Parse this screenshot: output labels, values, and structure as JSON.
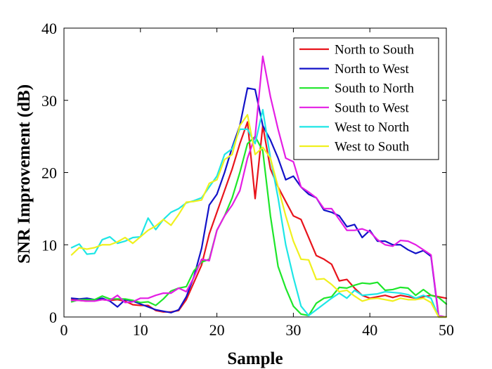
{
  "chart_data": {
    "type": "line",
    "title": "",
    "xlabel": "Sample",
    "ylabel": "SNR Improvement (dB)",
    "xlim": [
      0,
      50
    ],
    "ylim": [
      0,
      40
    ],
    "xticks": [
      0,
      10,
      20,
      30,
      40,
      50
    ],
    "yticks": [
      0,
      10,
      20,
      30,
      40
    ],
    "grid": false,
    "legend_position": "top-right",
    "x": [
      1,
      2,
      3,
      4,
      5,
      6,
      7,
      8,
      9,
      10,
      11,
      12,
      13,
      14,
      15,
      16,
      17,
      18,
      19,
      20,
      21,
      22,
      23,
      24,
      25,
      26,
      27,
      28,
      29,
      30,
      31,
      32,
      33,
      34,
      35,
      36,
      37,
      38,
      39,
      40,
      41,
      42,
      43,
      44,
      45,
      46,
      47,
      48,
      49,
      50
    ],
    "series": [
      {
        "name": "North to South",
        "color": "#e8141c",
        "values": [
          2.4,
          2.3,
          2.2,
          2.3,
          2.4,
          2.3,
          2.4,
          2.2,
          1.7,
          1.6,
          1.6,
          0.9,
          0.7,
          0.7,
          0.9,
          2.4,
          4.8,
          7.2,
          11.5,
          14.5,
          17.5,
          20.5,
          24.0,
          27.0,
          16.4,
          26.5,
          20.5,
          18.0,
          16.0,
          14.0,
          13.5,
          11.0,
          8.5,
          8.0,
          7.3,
          5.0,
          5.2,
          4.0,
          3.0,
          2.6,
          2.8,
          3.0,
          2.7,
          3.0,
          2.8,
          2.6,
          2.8,
          3.0,
          2.8,
          2.6
        ]
      },
      {
        "name": "North to West",
        "color": "#1212c8",
        "values": [
          2.6,
          2.5,
          2.6,
          2.4,
          2.6,
          2.2,
          1.4,
          2.4,
          2.2,
          1.8,
          1.4,
          1.0,
          0.8,
          0.6,
          1.0,
          2.8,
          5.6,
          9.5,
          15.5,
          17.0,
          20.0,
          23.5,
          26.5,
          31.7,
          31.5,
          26.5,
          24.5,
          22.0,
          19.0,
          19.5,
          18.0,
          17.0,
          16.5,
          14.8,
          14.5,
          14.0,
          12.5,
          12.8,
          11.0,
          12.0,
          10.5,
          10.5,
          10.0,
          10.0,
          9.3,
          8.8,
          9.2,
          8.4,
          0.0,
          0.0
        ]
      },
      {
        "name": "South to North",
        "color": "#1ee62a",
        "values": [
          2.1,
          2.4,
          2.4,
          2.4,
          2.9,
          2.5,
          2.5,
          2.5,
          2.3,
          2.0,
          2.1,
          1.6,
          2.5,
          3.6,
          4.0,
          4.2,
          6.4,
          7.6,
          8.0,
          12.0,
          14.0,
          16.5,
          20.0,
          24.0,
          25.0,
          23.0,
          14.0,
          7.0,
          4.0,
          1.5,
          0.4,
          0.2,
          1.9,
          2.6,
          2.8,
          4.1,
          4.0,
          4.4,
          4.7,
          4.6,
          4.8,
          3.7,
          3.8,
          4.1,
          4.0,
          3.0,
          3.8,
          3.0,
          2.7,
          1.8
        ]
      },
      {
        "name": "South to West",
        "color": "#e41ee4",
        "values": [
          2.3,
          2.3,
          2.2,
          2.2,
          2.4,
          2.3,
          3.0,
          2.0,
          2.1,
          2.6,
          2.6,
          3.0,
          3.3,
          3.3,
          4.0,
          3.5,
          5.5,
          8.0,
          7.8,
          12.0,
          14.0,
          15.5,
          17.5,
          22.0,
          25.0,
          36.1,
          30.5,
          26.0,
          22.0,
          21.5,
          18.0,
          17.3,
          16.5,
          15.0,
          15.0,
          13.5,
          12.0,
          12.0,
          12.2,
          11.8,
          10.7,
          10.0,
          9.8,
          10.6,
          10.5,
          10.0,
          9.3,
          8.6,
          0.2,
          0.0
        ]
      },
      {
        "name": "West to North",
        "color": "#1ee6e6",
        "values": [
          9.6,
          10.1,
          8.7,
          8.8,
          10.7,
          11.1,
          10.2,
          10.5,
          11.0,
          11.1,
          13.7,
          12.1,
          13.5,
          14.5,
          15.0,
          15.8,
          16.1,
          16.5,
          18.0,
          19.5,
          22.5,
          23.3,
          26.0,
          26.0,
          24.0,
          28.7,
          22.0,
          16.5,
          10.0,
          5.5,
          1.5,
          0.2,
          1.0,
          1.8,
          2.6,
          3.3,
          2.6,
          3.7,
          3.0,
          3.1,
          3.2,
          3.5,
          3.4,
          3.3,
          3.1,
          2.6,
          3.0,
          2.6,
          0.0,
          0.0
        ]
      },
      {
        "name": "West to South",
        "color": "#f0f01e",
        "values": [
          8.6,
          9.6,
          9.4,
          9.6,
          10.0,
          10.0,
          10.4,
          11.0,
          10.2,
          11.1,
          12.0,
          12.6,
          13.5,
          12.7,
          14.2,
          15.9,
          16.0,
          16.2,
          18.5,
          19.0,
          21.8,
          22.5,
          26.5,
          28.0,
          22.5,
          23.5,
          22.0,
          18.0,
          14.0,
          10.5,
          8.0,
          7.9,
          5.2,
          5.3,
          4.5,
          3.5,
          3.7,
          2.9,
          2.2,
          2.5,
          2.6,
          2.4,
          2.2,
          2.6,
          2.4,
          2.4,
          2.6,
          2.0,
          0.0,
          0.0
        ]
      }
    ]
  }
}
